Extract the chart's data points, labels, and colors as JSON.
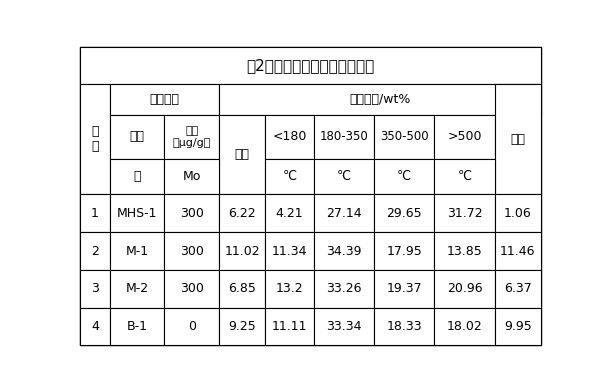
{
  "title": "表2减压渣油加氢裂化评价结果",
  "background_color": "#ffffff",
  "border_color": "#000000",
  "text_color": "#000000",
  "data_rows": [
    [
      "1",
      "MHS-1",
      "300",
      "6.22",
      "4.21",
      "27.14",
      "29.65",
      "31.72",
      "1.06"
    ],
    [
      "2",
      "M-1",
      "300",
      "11.02",
      "11.34",
      "34.39",
      "17.95",
      "13.85",
      "11.46"
    ],
    [
      "3",
      "M-2",
      "300",
      "6.85",
      "13.2",
      "33.26",
      "19.37",
      "20.96",
      "6.37"
    ],
    [
      "4",
      "B-1",
      "0",
      "9.25",
      "11.11",
      "33.34",
      "18.33",
      "18.02",
      "9.95"
    ]
  ],
  "figsize": [
    6.06,
    3.88
  ],
  "dpi": 100
}
